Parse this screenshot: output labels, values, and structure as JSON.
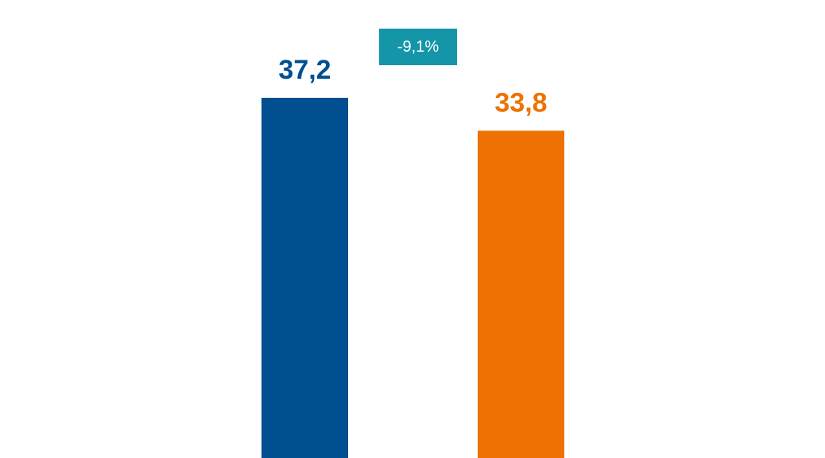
{
  "chart_data": {
    "type": "bar",
    "categories": [
      "",
      ""
    ],
    "values": [
      37.2,
      33.8
    ],
    "value_labels": [
      "37,2",
      "33,8"
    ],
    "colors": [
      "#004f91",
      "#ee7203"
    ],
    "ylim": [
      0,
      47.3
    ],
    "annotations": [
      {
        "text": "-9,1%",
        "color": "#1496a8"
      }
    ],
    "title": "",
    "xlabel": "",
    "ylabel": "",
    "grid": false,
    "legend": "none"
  }
}
